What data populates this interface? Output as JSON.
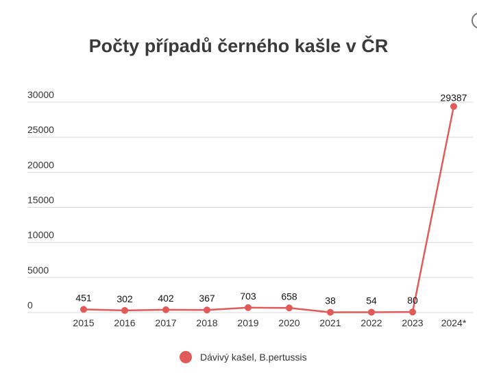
{
  "chart_data": {
    "type": "line",
    "title": "Počty případů černého kašle v ČR",
    "categories": [
      "2015",
      "2016",
      "2017",
      "2018",
      "2019",
      "2020",
      "2021",
      "2022",
      "2023",
      "2024*"
    ],
    "series": [
      {
        "name": "Dávivý kašel, B.pertussis",
        "values": [
          451,
          302,
          402,
          367,
          703,
          658,
          38,
          54,
          80,
          29387
        ]
      }
    ],
    "data_labels": [
      "451",
      "302",
      "402",
      "367",
      "703",
      "658",
      "38",
      "54",
      "80",
      "29387"
    ],
    "y_ticks": [
      "0",
      "5000",
      "10000",
      "15000",
      "20000",
      "25000",
      "30000"
    ],
    "ylim": [
      0,
      30000
    ],
    "grid": true,
    "legend_position": "bottom",
    "color": "#e05a5a"
  }
}
